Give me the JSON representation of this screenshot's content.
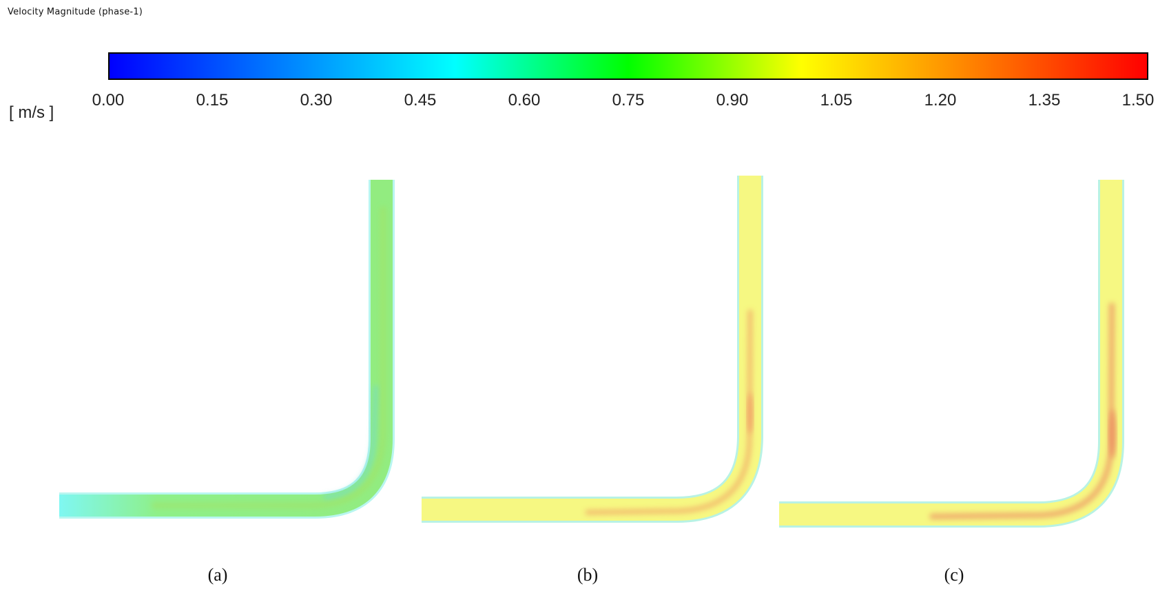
{
  "title": "Velocity Magnitude (phase-1)",
  "legend": {
    "unit": "[ m/s ]",
    "ticks": [
      "0.00",
      "0.15",
      "0.30",
      "0.45",
      "0.60",
      "0.75",
      "0.90",
      "1.05",
      "1.20",
      "1.35",
      "1.50"
    ],
    "range": [
      0.0,
      1.5
    ],
    "colors": [
      "#0000ff",
      "#00ffff",
      "#00ff00",
      "#ffff00",
      "#ff0000"
    ]
  },
  "panels": [
    {
      "caption": "(a)",
      "dominant_velocity": 0.55,
      "core_velocity": 0.7
    },
    {
      "caption": "(b)",
      "dominant_velocity": 1.05,
      "core_velocity": 1.3
    },
    {
      "caption": "(c)",
      "dominant_velocity": 1.05,
      "core_velocity": 1.35
    }
  ]
}
